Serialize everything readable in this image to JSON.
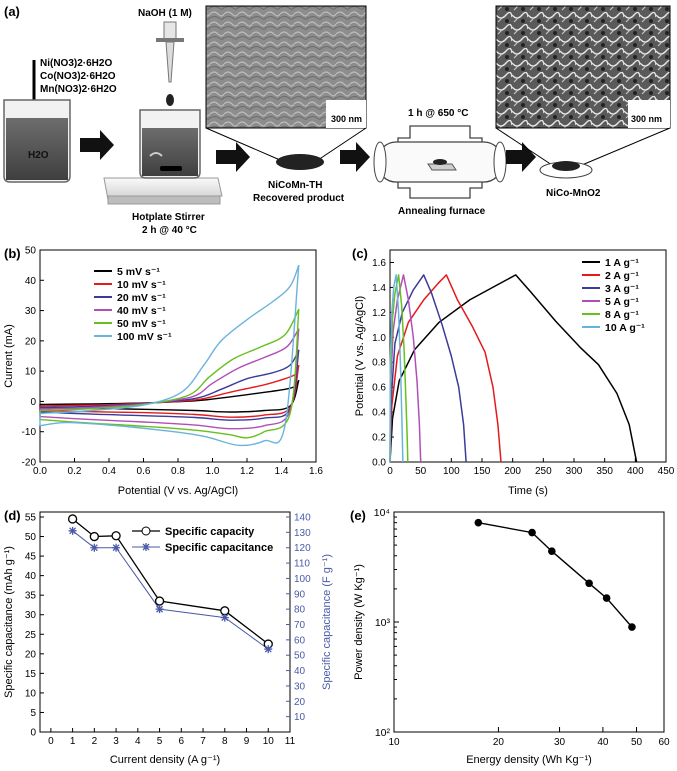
{
  "panels": {
    "a": "(a)",
    "b": "(b)",
    "c": "(c)",
    "d": "(d)",
    "e": "(e)"
  },
  "schematic": {
    "reagents": [
      "Ni(NO3)2·6H2O",
      "Co(NO3)2·6H2O",
      "Mn(NO3)2·6H2O"
    ],
    "water": "H2O",
    "naoh": "NaOH (1 M)",
    "stirrer_title": "Hotplate Stirrer",
    "stirrer_cond": "2 h @ 40 °C",
    "th_title": "NiCoMn-TH",
    "th_sub": "Recovered product",
    "anneal_cond": "1 h @ 650 °C",
    "furnace": "Annealing furnace",
    "final_product": "NiCo-MnO2",
    "scalebar1": "300 nm",
    "scalebar2": "300 nm"
  },
  "chart_data": [
    {
      "type": "line",
      "id": "cv",
      "xlabel": "Potential (V vs. Ag/AgCl)",
      "ylabel": "Current (mA)",
      "xlim": [
        0.0,
        1.6
      ],
      "ylim": [
        -20,
        50
      ],
      "xticks": [
        "0.0",
        "0.2",
        "0.4",
        "0.6",
        "0.8",
        "1.0",
        "1.2",
        "1.4",
        "1.6"
      ],
      "yticks": [
        "-20",
        "-10",
        "0",
        "10",
        "20",
        "30",
        "40",
        "50"
      ],
      "series": [
        {
          "name": "5 mV s⁻¹",
          "color": "#000000",
          "upper": [
            [
              0,
              -1
            ],
            [
              0.3,
              -0.8
            ],
            [
              0.6,
              -0.5
            ],
            [
              0.9,
              0.2
            ],
            [
              1.1,
              1.5
            ],
            [
              1.3,
              3
            ],
            [
              1.42,
              4
            ],
            [
              1.48,
              5
            ],
            [
              1.5,
              7
            ]
          ],
          "lower": [
            [
              0,
              -2
            ],
            [
              0.3,
              -2.3
            ],
            [
              0.6,
              -2.6
            ],
            [
              0.9,
              -3
            ],
            [
              1.1,
              -3.5
            ],
            [
              1.3,
              -3
            ],
            [
              1.45,
              -1.5
            ],
            [
              1.5,
              7
            ]
          ]
        },
        {
          "name": "10 mV s⁻¹",
          "color": "#e41a1c",
          "upper": [
            [
              0,
              -1.5
            ],
            [
              0.3,
              -1.2
            ],
            [
              0.6,
              -0.6
            ],
            [
              0.9,
              0.5
            ],
            [
              1.1,
              3
            ],
            [
              1.3,
              5.5
            ],
            [
              1.42,
              7.5
            ],
            [
              1.48,
              9
            ],
            [
              1.5,
              12
            ]
          ],
          "lower": [
            [
              0,
              -3
            ],
            [
              0.3,
              -3.4
            ],
            [
              0.6,
              -3.7
            ],
            [
              0.9,
              -4.3
            ],
            [
              1.1,
              -5.2
            ],
            [
              1.3,
              -4.5
            ],
            [
              1.45,
              -2
            ],
            [
              1.5,
              12
            ]
          ]
        },
        {
          "name": "20 mV s⁻¹",
          "color": "#3b3b9a",
          "upper": [
            [
              0,
              -2
            ],
            [
              0.3,
              -1.6
            ],
            [
              0.6,
              -0.7
            ],
            [
              0.9,
              1
            ],
            [
              1.05,
              4
            ],
            [
              1.2,
              7.5
            ],
            [
              1.35,
              9.5
            ],
            [
              1.45,
              12
            ],
            [
              1.5,
              17
            ]
          ],
          "lower": [
            [
              0,
              -3.5
            ],
            [
              0.3,
              -4.2
            ],
            [
              0.6,
              -4.7
            ],
            [
              0.9,
              -5.3
            ],
            [
              1.1,
              -6.2
            ],
            [
              1.3,
              -5.5
            ],
            [
              1.45,
              -2.5
            ],
            [
              1.5,
              17
            ]
          ]
        },
        {
          "name": "40 mV s⁻¹",
          "color": "#b14fb8",
          "upper": [
            [
              0,
              -2.5
            ],
            [
              0.3,
              -2
            ],
            [
              0.6,
              -0.8
            ],
            [
              0.88,
              1.5
            ],
            [
              1.0,
              6
            ],
            [
              1.15,
              11
            ],
            [
              1.3,
              14.5
            ],
            [
              1.43,
              18
            ],
            [
              1.5,
              24
            ]
          ],
          "lower": [
            [
              0,
              -5
            ],
            [
              0.3,
              -6
            ],
            [
              0.6,
              -6.8
            ],
            [
              0.9,
              -7.8
            ],
            [
              1.1,
              -9
            ],
            [
              1.3,
              -8
            ],
            [
              1.45,
              -3
            ],
            [
              1.5,
              24
            ]
          ]
        },
        {
          "name": "50 mV s⁻¹",
          "color": "#66c01e",
          "upper": [
            [
              0,
              -3
            ],
            [
              0.3,
              -2.4
            ],
            [
              0.6,
              -1
            ],
            [
              0.86,
              2
            ],
            [
              0.98,
              8
            ],
            [
              1.12,
              14
            ],
            [
              1.28,
              18
            ],
            [
              1.42,
              22
            ],
            [
              1.5,
              30.5
            ]
          ],
          "lower": [
            [
              0,
              -6
            ],
            [
              0.3,
              -7.2
            ],
            [
              0.6,
              -8.2
            ],
            [
              0.9,
              -9.5
            ],
            [
              1.1,
              -11
            ],
            [
              1.2,
              -12
            ],
            [
              1.3,
              -10
            ],
            [
              1.45,
              -4
            ],
            [
              1.5,
              30.5
            ]
          ]
        },
        {
          "name": "100 mV s⁻¹",
          "color": "#6ab4dc",
          "upper": [
            [
              0,
              -4
            ],
            [
              0.3,
              -3
            ],
            [
              0.6,
              -1.2
            ],
            [
              0.82,
              3
            ],
            [
              0.95,
              12
            ],
            [
              1.05,
              20
            ],
            [
              1.2,
              27
            ],
            [
              1.35,
              33
            ],
            [
              1.45,
              38
            ],
            [
              1.5,
              45
            ]
          ],
          "lower": [
            [
              0,
              -8
            ],
            [
              0.15,
              -7
            ],
            [
              0.4,
              -7.8
            ],
            [
              0.7,
              -9.5
            ],
            [
              0.95,
              -11.5
            ],
            [
              1.15,
              -14.5
            ],
            [
              1.3,
              -13
            ],
            [
              1.42,
              -8
            ],
            [
              1.5,
              45
            ]
          ]
        }
      ]
    },
    {
      "type": "line",
      "id": "gcd",
      "xlabel": "Time (s)",
      "ylabel": "Potential (V vs. Ag/AgCl)",
      "xlim": [
        0,
        450
      ],
      "ylim": [
        0,
        1.7
      ],
      "xticks": [
        "0",
        "50",
        "100",
        "150",
        "200",
        "250",
        "300",
        "350",
        "400",
        "450"
      ],
      "yticks": [
        "0.0",
        "0.2",
        "0.4",
        "0.6",
        "0.8",
        "1.0",
        "1.2",
        "1.4",
        "1.6"
      ],
      "series": [
        {
          "name": "1 A g⁻¹",
          "color": "#000000",
          "points": [
            [
              0,
              0
            ],
            [
              4,
              0.35
            ],
            [
              15,
              0.65
            ],
            [
              40,
              0.9
            ],
            [
              80,
              1.12
            ],
            [
              130,
              1.3
            ],
            [
              175,
              1.42
            ],
            [
              205,
              1.5
            ],
            [
              230,
              1.36
            ],
            [
              270,
              1.13
            ],
            [
              310,
              0.92
            ],
            [
              340,
              0.78
            ],
            [
              370,
              0.55
            ],
            [
              390,
              0.3
            ],
            [
              402,
              0
            ]
          ]
        },
        {
          "name": "2 A g⁻¹",
          "color": "#e41a1c",
          "points": [
            [
              0,
              0
            ],
            [
              3,
              0.45
            ],
            [
              12,
              0.85
            ],
            [
              30,
              1.12
            ],
            [
              55,
              1.3
            ],
            [
              78,
              1.43
            ],
            [
              92,
              1.5
            ],
            [
              110,
              1.3
            ],
            [
              135,
              1.08
            ],
            [
              155,
              0.88
            ],
            [
              168,
              0.6
            ],
            [
              176,
              0.3
            ],
            [
              181,
              0
            ]
          ]
        },
        {
          "name": "3 A g⁻¹",
          "color": "#3b3b9a",
          "points": [
            [
              0,
              0
            ],
            [
              2,
              0.5
            ],
            [
              8,
              0.95
            ],
            [
              20,
              1.2
            ],
            [
              38,
              1.38
            ],
            [
              55,
              1.5
            ],
            [
              68,
              1.35
            ],
            [
              85,
              1.1
            ],
            [
              100,
              0.85
            ],
            [
              112,
              0.6
            ],
            [
              120,
              0.3
            ],
            [
              124,
              0
            ]
          ]
        },
        {
          "name": "5 A g⁻¹",
          "color": "#b14fb8",
          "points": [
            [
              0,
              0
            ],
            [
              1,
              0.6
            ],
            [
              5,
              1.05
            ],
            [
              12,
              1.3
            ],
            [
              22,
              1.5
            ],
            [
              30,
              1.3
            ],
            [
              38,
              1.0
            ],
            [
              44,
              0.65
            ],
            [
              48,
              0.3
            ],
            [
              50,
              0
            ]
          ]
        },
        {
          "name": "8 A g⁻¹",
          "color": "#66c01e",
          "points": [
            [
              0,
              0
            ],
            [
              1,
              0.7
            ],
            [
              4,
              1.15
            ],
            [
              8,
              1.35
            ],
            [
              14,
              1.5
            ],
            [
              19,
              1.25
            ],
            [
              23,
              0.9
            ],
            [
              26,
              0.5
            ],
            [
              28,
              0.2
            ],
            [
              29,
              0
            ]
          ]
        },
        {
          "name": "10 A g⁻¹",
          "color": "#6ab4dc",
          "points": [
            [
              0,
              0
            ],
            [
              0.5,
              0.8
            ],
            [
              3,
              1.2
            ],
            [
              6,
              1.4
            ],
            [
              10,
              1.5
            ],
            [
              14,
              1.2
            ],
            [
              17,
              0.8
            ],
            [
              19,
              0.4
            ],
            [
              21,
              0
            ]
          ]
        }
      ]
    },
    {
      "type": "line",
      "id": "capacity",
      "xlabel": "Current density (A g⁻¹)",
      "ylabel_left": "Specific capacitance (mAh g⁻¹)",
      "ylabel_right": "Specific capacitance (F g⁻¹)",
      "xlim": [
        -0.5,
        11
      ],
      "ylim_left": [
        0,
        55
      ],
      "ylim_right": [
        0,
        140
      ],
      "xticks": [
        "0",
        "1",
        "2",
        "3",
        "4",
        "5",
        "6",
        "7",
        "8",
        "9",
        "10",
        "11"
      ],
      "yticks_left": [
        "0",
        "5",
        "10",
        "15",
        "20",
        "25",
        "30",
        "35",
        "40",
        "45",
        "50",
        "55"
      ],
      "yticks_right": [
        "10",
        "20",
        "30",
        "40",
        "50",
        "60",
        "70",
        "80",
        "90",
        "100",
        "110",
        "120",
        "130",
        "140"
      ],
      "legend": [
        "Specific capacity",
        "Specific capacitance"
      ],
      "x": [
        1,
        2,
        3,
        5,
        8,
        10
      ],
      "capacity_mAh": [
        54.5,
        50,
        50.2,
        33.5,
        31,
        22.5
      ],
      "capacitance_F": [
        131,
        120,
        120,
        80,
        74.5,
        54
      ]
    },
    {
      "type": "line",
      "id": "ragone",
      "xlabel": "Energy density (Wh Kg⁻¹)",
      "ylabel": "Power density (W Kg⁻¹)",
      "xscale": "log",
      "yscale": "log",
      "xlim": [
        10,
        60
      ],
      "ylim": [
        100,
        10000
      ],
      "xticks": [
        "10",
        "20",
        "30",
        "40",
        "50",
        "60"
      ],
      "yticks": [
        "10²",
        "10³",
        "10⁴"
      ],
      "x": [
        17.5,
        25,
        28.5,
        36.5,
        41,
        48.5
      ],
      "y": [
        8000,
        6500,
        4400,
        2250,
        1650,
        900
      ]
    }
  ]
}
